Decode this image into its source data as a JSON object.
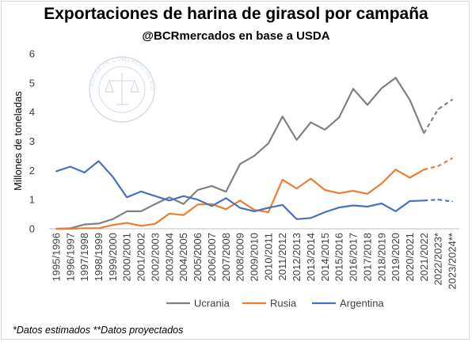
{
  "title": "Exportaciones de harina de girasol por campaña",
  "subtitle": "@BCRmercados en base a USDA",
  "footnote": "*Datos estimados **Datos proyectados",
  "watermark": {
    "text": "BOLSA DE COMERCIO DE ROSARIO"
  },
  "chart_data": {
    "type": "line",
    "ylabel": "Millones de toneladas",
    "xlabel": "",
    "ylim": [
      0,
      6
    ],
    "yticks": [
      0,
      1,
      2,
      3,
      4,
      5,
      6
    ],
    "grid": false,
    "legend_position": "bottom",
    "categories": [
      "1995/1996",
      "1996/1997",
      "1997/1998",
      "1998/1999",
      "1999/2000",
      "2000/2001",
      "2001/2002",
      "2002/2003",
      "2003/2004",
      "2004/2005",
      "2005/2006",
      "2006/2007",
      "2007/2008",
      "2008/2009",
      "2009/2010",
      "2010/2011",
      "2011/2012",
      "2012/2013",
      "2013/2014",
      "2014/2015",
      "2015/2016",
      "2016/2017",
      "2017/2018",
      "2018/2019",
      "2019/2020",
      "2020/2021",
      "2021/2022",
      "2022/2023*",
      "2023/2024**"
    ],
    "dashed_from_index": 26,
    "series": [
      {
        "name": "Ucrania",
        "color": "#808080",
        "values": [
          0.0,
          0.02,
          0.15,
          0.18,
          0.33,
          0.6,
          0.6,
          0.85,
          1.08,
          0.85,
          1.33,
          1.47,
          1.27,
          2.22,
          2.5,
          2.93,
          3.85,
          3.05,
          3.65,
          3.4,
          3.82,
          4.8,
          4.25,
          4.82,
          5.18,
          4.42,
          3.28,
          4.1,
          4.43
        ]
      },
      {
        "name": "Rusia",
        "color": "#ed7d31",
        "values": [
          0.0,
          0.0,
          0.02,
          0.02,
          0.13,
          0.2,
          0.1,
          0.17,
          0.52,
          0.47,
          0.83,
          0.85,
          0.67,
          0.97,
          0.65,
          0.57,
          1.68,
          1.38,
          1.72,
          1.33,
          1.22,
          1.3,
          1.2,
          1.55,
          2.03,
          1.75,
          2.03,
          2.15,
          2.42
        ]
      },
      {
        "name": "Argentina",
        "color": "#4472c4",
        "values": [
          1.97,
          2.13,
          1.93,
          2.32,
          1.78,
          1.08,
          1.28,
          1.12,
          0.97,
          1.12,
          1.0,
          0.78,
          1.05,
          0.72,
          0.6,
          0.72,
          0.82,
          0.33,
          0.37,
          0.57,
          0.73,
          0.8,
          0.76,
          0.87,
          0.6,
          0.95,
          0.97,
          1.0,
          0.94
        ]
      }
    ]
  }
}
